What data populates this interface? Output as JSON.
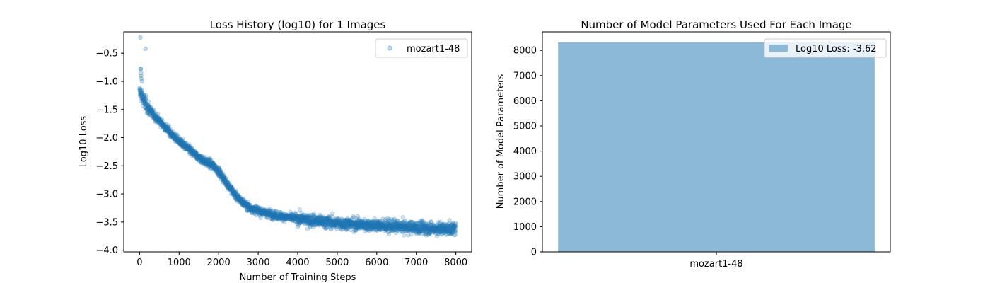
{
  "colors": {
    "scatter": "#1f77b4",
    "bar": "#8db9d9",
    "legend_border": "#cccccc",
    "axis": "#000000"
  },
  "chart_data": [
    {
      "type": "scatter",
      "title": "Loss History (log10) for 1 Images",
      "xlabel": "Number of Training Steps",
      "ylabel": "Log10 Loss",
      "xlim": [
        -400,
        8400
      ],
      "ylim": [
        -4.03,
        -0.12
      ],
      "xticks": [
        0,
        1000,
        2000,
        3000,
        4000,
        5000,
        6000,
        7000,
        8000
      ],
      "xtick_labels": [
        "0",
        "1000",
        "2000",
        "3000",
        "4000",
        "5000",
        "6000",
        "7000",
        "8000"
      ],
      "yticks": [
        -4.0,
        -3.5,
        -3.0,
        -2.5,
        -2.0,
        -1.5,
        -1.0,
        -0.5
      ],
      "ytick_labels": [
        "−4.0",
        "−3.5",
        "−3.0",
        "−2.5",
        "−2.0",
        "−1.5",
        "−1.0",
        "−0.5"
      ],
      "legend": {
        "position": "top-right",
        "entries": [
          "mozart1-48"
        ]
      },
      "series": [
        {
          "name": "mozart1-48",
          "marker": "circle",
          "alpha": 0.25,
          "x": [
            0,
            20,
            50,
            100,
            200,
            300,
            400,
            500,
            600,
            700,
            800,
            900,
            1000,
            1100,
            1200,
            1300,
            1400,
            1500,
            1600,
            1700,
            1800,
            1900,
            2000,
            2100,
            2200,
            2300,
            2400,
            2500,
            2600,
            2700,
            2800,
            3000,
            3200,
            3400,
            3600,
            3800,
            4000,
            4500,
            5000,
            5500,
            6000,
            6500,
            7000,
            7500,
            8000
          ],
          "y": [
            -1.2,
            -1.2,
            -1.25,
            -1.33,
            -1.45,
            -1.55,
            -1.63,
            -1.7,
            -1.78,
            -1.85,
            -1.93,
            -2.0,
            -2.06,
            -2.12,
            -2.18,
            -2.24,
            -2.3,
            -2.35,
            -2.4,
            -2.44,
            -2.47,
            -2.52,
            -2.6,
            -2.7,
            -2.8,
            -2.9,
            -3.0,
            -3.08,
            -3.14,
            -3.2,
            -3.25,
            -3.3,
            -3.34,
            -3.37,
            -3.4,
            -3.42,
            -3.44,
            -3.48,
            -3.52,
            -3.54,
            -3.56,
            -3.58,
            -3.6,
            -3.62,
            -3.62
          ]
        }
      ],
      "outliers": {
        "x": [
          20,
          25,
          30,
          35,
          40,
          45,
          60,
          150
        ],
        "y": [
          -0.22,
          -0.78,
          -0.78,
          -0.85,
          -0.9,
          -0.95,
          -1.0,
          -0.42
        ]
      }
    },
    {
      "type": "bar",
      "title": "Number of Model Parameters Used For Each Image",
      "xlabel": "",
      "ylabel": "Number of Model Parameters",
      "categories": [
        "mozart1-48"
      ],
      "values": [
        8320
      ],
      "ylim": [
        0,
        8736
      ],
      "yticks": [
        0,
        1000,
        2000,
        3000,
        4000,
        5000,
        6000,
        7000,
        8000
      ],
      "ytick_labels": [
        "0",
        "1000",
        "2000",
        "3000",
        "4000",
        "5000",
        "6000",
        "7000",
        "8000"
      ],
      "legend": {
        "position": "top-right",
        "entries": [
          "Log10 Loss: -3.62"
        ]
      }
    }
  ]
}
